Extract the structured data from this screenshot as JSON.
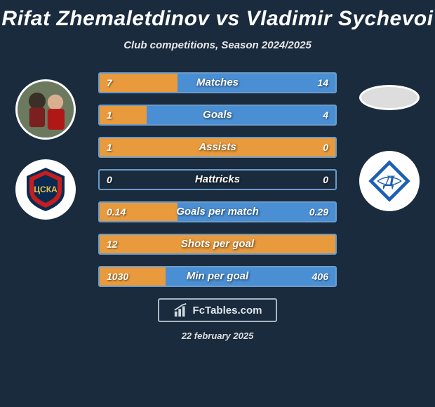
{
  "title": "Rifat Zhemaletdinov vs Vladimir Sychevoi",
  "subtitle": "Club competitions, Season 2024/2025",
  "date": "22 february 2025",
  "footer_brand": "FcTables.com",
  "colors": {
    "orange": "#e89a3c",
    "blue": "#4a8fd4",
    "border_accent": "#6b9bc9",
    "bg": "#1a2b3d"
  },
  "stats": [
    {
      "label": "Matches",
      "left_val": "7",
      "right_val": "14",
      "left_pct": 33,
      "right_pct": 67
    },
    {
      "label": "Goals",
      "left_val": "1",
      "right_val": "4",
      "left_pct": 20,
      "right_pct": 80
    },
    {
      "label": "Assists",
      "left_val": "1",
      "right_val": "0",
      "left_pct": 100,
      "right_pct": 0
    },
    {
      "label": "Hattricks",
      "left_val": "0",
      "right_val": "0",
      "left_pct": 0,
      "right_pct": 0
    },
    {
      "label": "Goals per match",
      "left_val": "0.14",
      "right_val": "0.29",
      "left_pct": 33,
      "right_pct": 67
    },
    {
      "label": "Shots per goal",
      "left_val": "12",
      "right_val": "",
      "left_pct": 100,
      "right_pct": 0
    },
    {
      "label": "Min per goal",
      "left_val": "1030",
      "right_val": "406",
      "left_pct": 28,
      "right_pct": 72
    }
  ]
}
